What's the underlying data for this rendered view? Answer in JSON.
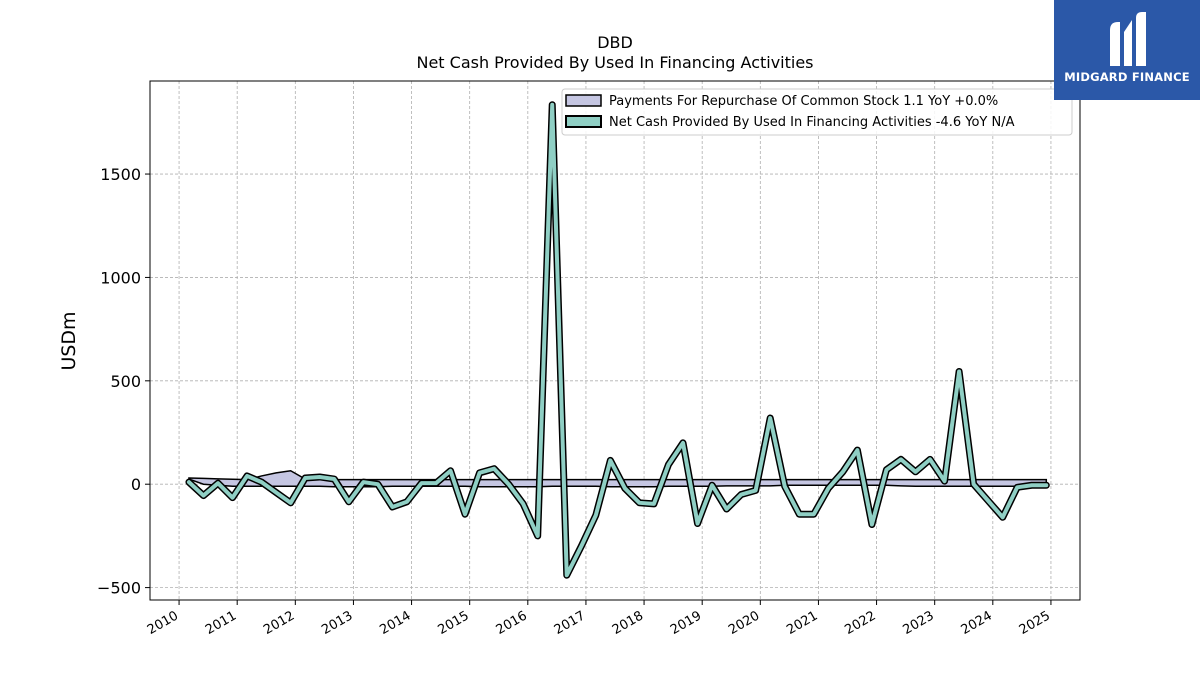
{
  "logo": {
    "brand": "MIDGARD FINANCE"
  },
  "chart_data": {
    "type": "area",
    "title": "DBD",
    "subtitle": "Net Cash Provided By Used In Financing Activities",
    "xlabel": "",
    "ylabel": "USDm",
    "xlim": [
      2009.5,
      2025.5
    ],
    "ylim": [
      -560,
      1950
    ],
    "x_ticks": [
      "2010",
      "2011",
      "2012",
      "2013",
      "2014",
      "2015",
      "2016",
      "2017",
      "2018",
      "2019",
      "2020",
      "2021",
      "2022",
      "2023",
      "2024",
      "2025"
    ],
    "y_ticks": [
      -500,
      0,
      500,
      1000,
      1500
    ],
    "y_tick_labels": [
      "−500",
      "0",
      "500",
      "1000",
      "1500"
    ],
    "grid": true,
    "legend_position": "top-right",
    "series": [
      {
        "name": "Payments For Repurchase Of Common Stock  1.1 YoY +0.0%",
        "color": "#c5c6e2",
        "edge_color": "#000000",
        "x": [
          2010.17,
          2010.42,
          2010.67,
          2010.92,
          2011.17,
          2011.42,
          2011.67,
          2011.92,
          2012.17,
          2012.42,
          2012.67,
          2012.92,
          2013.17,
          2013.42,
          2013.67,
          2013.92,
          2014.17,
          2014.42,
          2014.67,
          2014.92,
          2015.17,
          2015.42,
          2015.67,
          2015.92,
          2016.17,
          2016.42,
          2016.67,
          2016.92,
          2017.17,
          2017.42,
          2017.67,
          2017.92,
          2018.17,
          2018.42,
          2018.67,
          2018.92,
          2019.17,
          2019.42,
          2019.67,
          2019.92,
          2020.17,
          2020.42,
          2020.67,
          2020.92,
          2021.17,
          2021.42,
          2021.67,
          2021.92,
          2022.17,
          2022.42,
          2022.67,
          2022.92,
          2023.17,
          2023.42,
          2023.67,
          2023.92,
          2024.17,
          2024.42,
          2024.67,
          2024.92
        ],
        "upper": [
          30,
          28,
          26,
          24,
          22,
          40,
          55,
          65,
          25,
          22,
          22,
          22,
          22,
          22,
          22,
          22,
          22,
          22,
          22,
          22,
          22,
          22,
          22,
          22,
          22,
          22,
          22,
          22,
          22,
          22,
          22,
          22,
          22,
          22,
          22,
          22,
          22,
          22,
          22,
          22,
          22,
          22,
          22,
          22,
          22,
          22,
          22,
          22,
          22,
          22,
          22,
          22,
          22,
          22,
          22,
          22,
          22,
          22,
          22,
          22
        ],
        "lower": [
          25,
          0,
          -5,
          -10,
          -10,
          -10,
          -10,
          -10,
          -10,
          -10,
          -12,
          -12,
          -12,
          -12,
          -10,
          -10,
          -10,
          -10,
          -10,
          -10,
          -12,
          -12,
          -12,
          -12,
          -12,
          -10,
          -10,
          -10,
          -10,
          -12,
          -12,
          -12,
          -12,
          -10,
          -10,
          -10,
          -10,
          -8,
          -8,
          -8,
          -8,
          -5,
          -5,
          -5,
          -5,
          -5,
          -5,
          -5,
          -5,
          -8,
          -10,
          -10,
          -10,
          -10,
          -10,
          -10,
          -10,
          -10,
          -10,
          -10
        ]
      },
      {
        "name": "Net Cash Provided By Used In Financing Activities  -4.6 YoY N/A",
        "color": "#8fcfc4",
        "edge_color": "#000000",
        "x": [
          2010.17,
          2010.42,
          2010.67,
          2010.92,
          2011.17,
          2011.42,
          2011.67,
          2011.92,
          2012.17,
          2012.42,
          2012.67,
          2012.92,
          2013.17,
          2013.42,
          2013.67,
          2013.92,
          2014.17,
          2014.42,
          2014.67,
          2014.92,
          2015.17,
          2015.42,
          2015.67,
          2015.92,
          2016.17,
          2016.42,
          2016.67,
          2016.92,
          2017.17,
          2017.42,
          2017.67,
          2017.92,
          2018.17,
          2018.42,
          2018.67,
          2018.92,
          2019.17,
          2019.42,
          2019.67,
          2019.92,
          2020.17,
          2020.42,
          2020.67,
          2020.92,
          2021.17,
          2021.42,
          2021.67,
          2021.92,
          2022.17,
          2022.42,
          2022.67,
          2022.92,
          2023.17,
          2023.42,
          2023.67,
          2023.92,
          2024.17,
          2024.42,
          2024.67,
          2024.92
        ],
        "values": [
          10,
          -55,
          5,
          -65,
          40,
          10,
          -40,
          -90,
          30,
          35,
          25,
          -85,
          10,
          0,
          -110,
          -85,
          5,
          5,
          65,
          -145,
          55,
          75,
          0,
          -95,
          -250,
          1835,
          -440,
          -300,
          -150,
          115,
          -20,
          -90,
          -95,
          95,
          200,
          -190,
          -5,
          -120,
          -50,
          -30,
          320,
          -10,
          -145,
          -145,
          -20,
          60,
          165,
          -195,
          70,
          120,
          60,
          120,
          15,
          545,
          0,
          -80,
          -160,
          -15,
          -5,
          -5
        ]
      }
    ]
  }
}
